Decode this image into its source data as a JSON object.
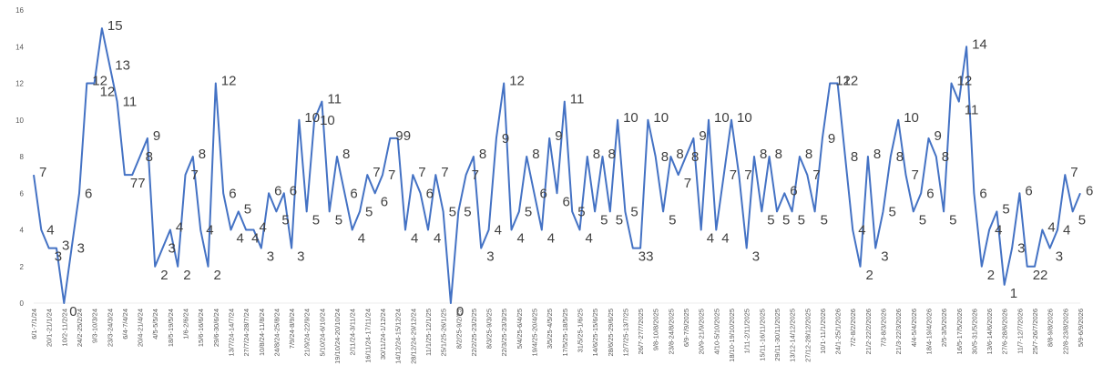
{
  "chart_data": {
    "type": "line",
    "title": "",
    "xlabel": "",
    "ylabel": "",
    "ylim": [
      0,
      16
    ],
    "yticks": [
      0,
      2,
      4,
      6,
      8,
      10,
      12,
      14,
      16
    ],
    "grid": false,
    "legend": "none",
    "line_color": "#4472c4",
    "x_tick_labels": [
      "6/1-7/1/24",
      "20/1-21/1/24",
      "10/2-11/2/24",
      "24/2-25/2/24",
      "9/3-10/3/24",
      "23/3-24/3/24",
      "6/4-7/4/24",
      "20/4-21/4/24",
      "4/5-5/5/24",
      "18/5-19/5/24",
      "1/6-2/6/24",
      "15/6-16/6/24",
      "29/6-30/6/24",
      "13/7/24-14/7/24",
      "27/7/24-28/7/24",
      "10/8/24-11/8/24",
      "24/8/24-25/8/24",
      "7/9/24-8/9/24",
      "21/9/24-22/9/24",
      "5/10/24-6/10/24",
      "19/10/24-20/10/24",
      "2/11/24-3/11/24",
      "16/11/24-17/11/24",
      "30/11/24-1/12/24",
      "14/12/24-15/12/24",
      "28/12/24-29/12/24",
      "11/1/25-12/1/25",
      "25/1/25-26/1/25",
      "8/2/25-9/2/25",
      "22/2/25-23/2/25",
      "8/3/25-9/3/25",
      "22/3/25-23/3/25",
      "5/4/25-6/4/25",
      "19/4/25-20/4/25",
      "3/5/25-4/5/25",
      "17/5/25-18/5/25",
      "31/5/25-1/6/25",
      "14/6/25-15/6/25",
      "28/6/25-29/6/25",
      "12/7/25-13/7/25",
      "26/7-27/7/2025",
      "9/8-10/8/2025",
      "23/8-24/8/2025",
      "6/9-7/9/2025",
      "20/9-21/9/2025",
      "4/10-5/10/2025",
      "18/10-19/10/2025",
      "1/11-2/11/2025",
      "15/11-16/11/2025",
      "29/11-30/11/2025",
      "13/12-14/12/2025",
      "27/12-28/12/2025",
      "10/1-11/1/2026",
      "24/1-25/1/2026",
      "7/2-8/2/2026",
      "21/2-22/2/2026",
      "7/3-8/3/2026",
      "21/3-22/3/2026",
      "4/4-5/4/2026",
      "18/4-19/4/2026",
      "2/5-3/5/2026",
      "16/5-17/5/2026",
      "30/5-31/5/2026",
      "13/6-14/6/2026",
      "27/6-28/6/2026",
      "11/7-12/7/2026",
      "25/7-26/7/2026",
      "8/8-9/8/2026",
      "22/8-23/8/2026",
      "5/9-6/9/2026"
    ],
    "values": [
      7,
      4,
      3,
      3,
      0,
      3,
      6,
      12,
      12,
      15,
      13,
      11,
      7,
      7,
      8,
      9,
      2,
      3,
      4,
      2,
      7,
      8,
      4,
      2,
      12,
      6,
      4,
      5,
      4,
      4,
      3,
      6,
      5,
      6,
      3,
      10,
      5,
      10,
      11,
      5,
      8,
      6,
      4,
      5,
      7,
      6,
      7,
      9,
      9,
      4,
      7,
      6,
      4,
      7,
      5,
      0,
      5,
      7,
      8,
      3,
      4,
      9,
      12,
      4,
      5,
      8,
      6,
      4,
      9,
      6,
      11,
      5,
      4,
      8,
      5,
      8,
      5,
      10,
      5,
      3,
      3,
      10,
      8,
      5,
      8,
      7,
      8,
      9,
      4,
      10,
      4,
      7,
      10,
      7,
      3,
      8,
      5,
      8,
      5,
      6,
      5,
      8,
      7,
      5,
      9,
      12,
      12,
      8,
      4,
      2,
      8,
      3,
      5,
      8,
      10,
      7,
      5,
      6,
      9,
      8,
      5,
      12,
      11,
      14,
      6,
      2,
      4,
      5,
      1,
      3,
      6,
      2,
      2,
      4,
      3,
      4,
      7,
      5,
      6
    ]
  }
}
